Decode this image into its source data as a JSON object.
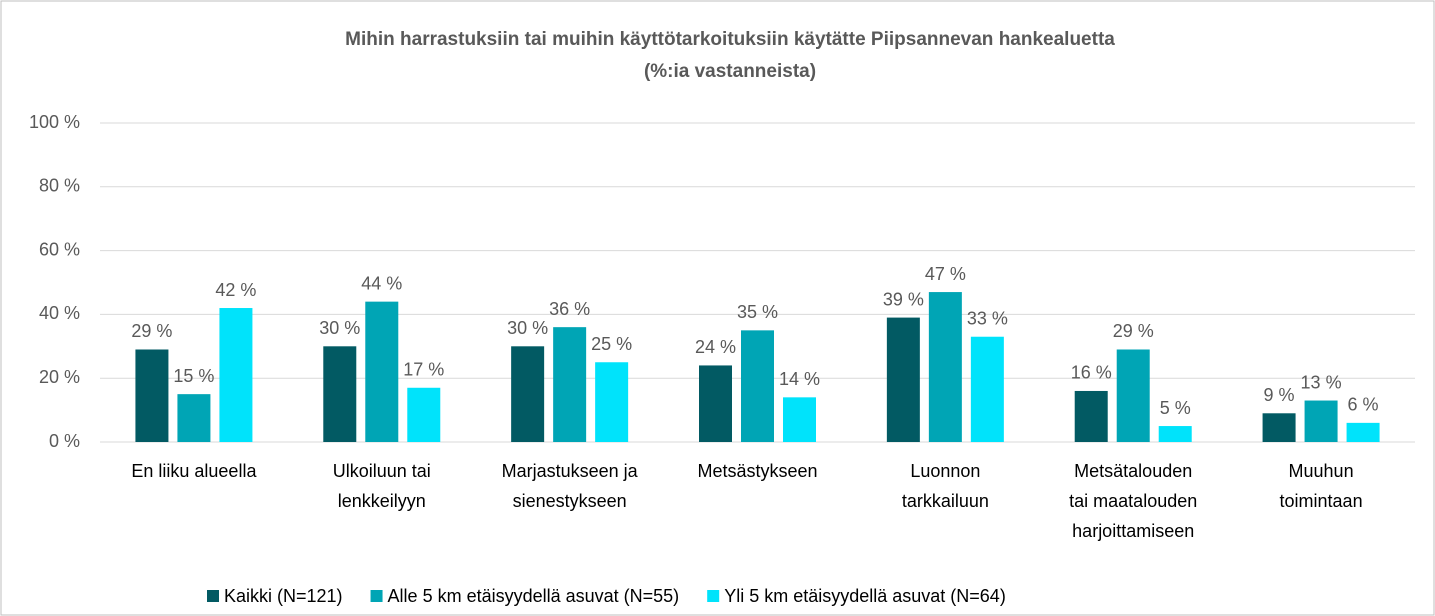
{
  "chart_data": {
    "type": "bar",
    "title": [
      "Mihin harrastuksiin  tai muihin käyttötarkoituksiin  käytätte Piipsannevan hankealuetta",
      "(%:ia vastanneista)"
    ],
    "categories": [
      [
        "En liiku alueella"
      ],
      [
        "Ulkoiluun tai",
        "lenkkeilyyn"
      ],
      [
        "Marjastukseen ja",
        "sienestykseen"
      ],
      [
        "Metsästykseen"
      ],
      [
        "Luonnon",
        "tarkkailuun"
      ],
      [
        "Metsätalouden",
        "tai maatalouden",
        "harjoittamiseen"
      ],
      [
        "Muuhun",
        "toimintaan"
      ]
    ],
    "series": [
      {
        "name": "Kaikki (N=121)",
        "color": "#025a63",
        "values": [
          29,
          30,
          30,
          24,
          39,
          16,
          9
        ],
        "value_labels": [
          "29 %",
          "30 %",
          "30 %",
          "24 %",
          "39 %",
          "16 %",
          "9 %"
        ]
      },
      {
        "name": "Alle 5 km etäisyydellä asuvat (N=55)",
        "color": "#00a5b5",
        "values": [
          15,
          44,
          36,
          35,
          47,
          29,
          13
        ],
        "value_labels": [
          "15 %",
          "44 %",
          "36 %",
          "35 %",
          "47 %",
          "29 %",
          "13 %"
        ]
      },
      {
        "name": "Yli 5 km etäisyydellä asuvat (N=64)",
        "color": "#00e3fb",
        "values": [
          42,
          17,
          25,
          14,
          33,
          5,
          6
        ],
        "value_labels": [
          "42 %",
          "17 %",
          "25 %",
          "14 %",
          "33 %",
          "5 %",
          "6 %"
        ]
      }
    ],
    "ylim": [
      0,
      100
    ],
    "yticks": [
      {
        "value": 0,
        "label": "0 %"
      },
      {
        "value": 20,
        "label": "20 %"
      },
      {
        "value": 40,
        "label": "40 %"
      },
      {
        "value": 60,
        "label": "60 %"
      },
      {
        "value": 80,
        "label": "80 %"
      },
      {
        "value": 100,
        "label": "100 %"
      }
    ],
    "grid": true,
    "legend": "bottom"
  }
}
